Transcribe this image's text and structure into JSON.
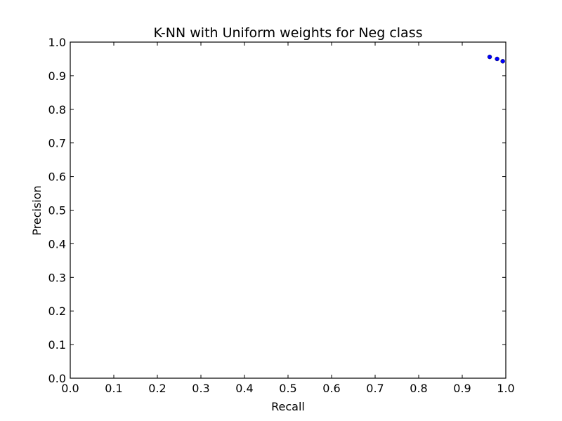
{
  "chart_data": {
    "type": "scatter",
    "title": "K-NN with Uniform weights for Neg class",
    "xlabel": "Recall",
    "ylabel": "Precision",
    "xlim": [
      0.0,
      1.0
    ],
    "ylim": [
      0.0,
      1.0
    ],
    "xticks": [
      "0.0",
      "0.1",
      "0.2",
      "0.3",
      "0.4",
      "0.5",
      "0.6",
      "0.7",
      "0.8",
      "0.9",
      "1.0"
    ],
    "yticks": [
      "0.0",
      "0.1",
      "0.2",
      "0.3",
      "0.4",
      "0.5",
      "0.6",
      "0.7",
      "0.8",
      "0.9",
      "1.0"
    ],
    "grid": false,
    "series": [
      {
        "color": "#0000ff",
        "points": [
          {
            "x": 0.963,
            "y": 0.956
          },
          {
            "x": 0.98,
            "y": 0.95
          },
          {
            "x": 0.993,
            "y": 0.943
          }
        ]
      }
    ]
  }
}
